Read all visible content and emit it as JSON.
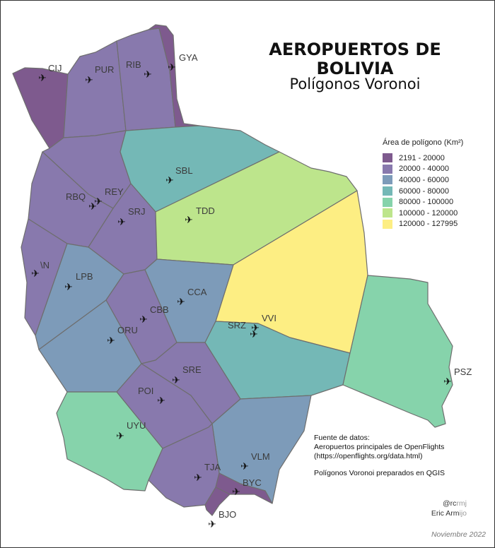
{
  "title": "AEROPUERTOS DE BOLIVIA",
  "subtitle": "Polígonos Voronoi",
  "legend": {
    "title": "Área de polígono (Km²)",
    "items": [
      {
        "label": "2191 - 20000",
        "color": "#7e5a8e"
      },
      {
        "label": "20000 - 40000",
        "color": "#8879ad"
      },
      {
        "label": "40000 - 60000",
        "color": "#7d9bb9"
      },
      {
        "label": "60000 - 80000",
        "color": "#74b8b6"
      },
      {
        "label": "80000 - 100000",
        "color": "#86d3ab"
      },
      {
        "label": "100000 - 120000",
        "color": "#bde58c"
      },
      {
        "label": "120000 - 127995",
        "color": "#fdee83"
      }
    ]
  },
  "airports": [
    "CIJ",
    "PUR",
    "RIB",
    "GYA",
    "SBL",
    "TDD",
    "REY",
    "RBQ",
    "SRJ",
    "\\N",
    "LPB",
    "CCA",
    "CBB",
    "ORU",
    "SRZ",
    "VVI",
    "PSZ",
    "SRE",
    "POI",
    "UYU",
    "VLM",
    "TJA",
    "BYC",
    "BJO"
  ],
  "source": {
    "heading": "Fuente de datos:",
    "line1": "Aeropuertos principales de OpenFlights",
    "line2": "(https://openflights.org/data.html)",
    "line3": "Polígonos Voronoi preparados en QGIS"
  },
  "credit": {
    "handle_a": "@rc",
    "handle_b": "rmj",
    "name_a": "Eric Arm",
    "name_b": "ijo"
  },
  "date": "Noviembre 2022"
}
